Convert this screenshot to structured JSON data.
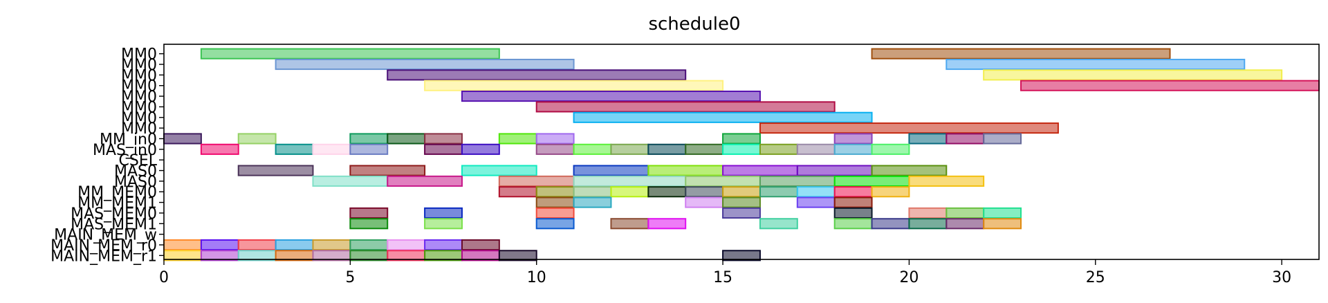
{
  "chart_data": {
    "type": "gantt",
    "title": "schedule0",
    "xlim": [
      0,
      31
    ],
    "x_ticks": [
      0,
      5,
      10,
      15,
      20,
      25,
      30
    ],
    "grid": false,
    "rows": [
      "MM0",
      "MM0",
      "MM0",
      "MM0",
      "MM0",
      "MM0",
      "MM0",
      "MM0",
      "MM_in0",
      "MAS_in0",
      "CSEL",
      "MAS0",
      "MAS0",
      "MM_MEM0",
      "MM_MEM1",
      "MAS_MEM0",
      "MAS_MEM1",
      "MAIN_MEM_w",
      "MAIN_MEM_r0",
      "MAIN_MEM_r1"
    ],
    "bars": [
      {
        "row": 0,
        "start": 1,
        "end": 9,
        "color": "#3cc453"
      },
      {
        "row": 0,
        "start": 19,
        "end": 27,
        "color": "#a0500f"
      },
      {
        "row": 1,
        "start": 3,
        "end": 11,
        "color": "#6b96d2"
      },
      {
        "row": 1,
        "start": 21,
        "end": 29,
        "color": "#4ea8f0"
      },
      {
        "row": 2,
        "start": 6,
        "end": 14,
        "color": "#4a0f78"
      },
      {
        "row": 2,
        "start": 22,
        "end": 30,
        "color": "#f2ee4e"
      },
      {
        "row": 3,
        "start": 7,
        "end": 15,
        "color": "#fff180"
      },
      {
        "row": 3,
        "start": 23,
        "end": 31,
        "color": "#d4145a"
      },
      {
        "row": 4,
        "start": 8,
        "end": 16,
        "color": "#5612b0"
      },
      {
        "row": 5,
        "start": 10,
        "end": 18,
        "color": "#b00c44"
      },
      {
        "row": 6,
        "start": 11,
        "end": 19,
        "color": "#07b0f0"
      },
      {
        "row": 7,
        "start": 16,
        "end": 24,
        "color": "#c42810"
      },
      {
        "row": 8,
        "start": 0,
        "end": 1,
        "color": "#3c1a5c"
      },
      {
        "row": 8,
        "start": 2,
        "end": 3,
        "color": "#95d165"
      },
      {
        "row": 8,
        "start": 5,
        "end": 6,
        "color": "#0e9a5c"
      },
      {
        "row": 8,
        "start": 6,
        "end": 7,
        "color": "#0c5a1a"
      },
      {
        "row": 8,
        "start": 7,
        "end": 8,
        "color": "#8a3044"
      },
      {
        "row": 8,
        "start": 9,
        "end": 10,
        "color": "#50e60a"
      },
      {
        "row": 8,
        "start": 10,
        "end": 11,
        "color": "#a068ee"
      },
      {
        "row": 8,
        "start": 15,
        "end": 16,
        "color": "#0ea53a"
      },
      {
        "row": 8,
        "start": 18,
        "end": 19,
        "color": "#8c40ba"
      },
      {
        "row": 8,
        "start": 20,
        "end": 21,
        "color": "#0a6a80"
      },
      {
        "row": 8,
        "start": 21,
        "end": 22,
        "color": "#920e66"
      },
      {
        "row": 8,
        "start": 22,
        "end": 23,
        "color": "#666a9a"
      },
      {
        "row": 9,
        "start": 1,
        "end": 2,
        "color": "#f00a6e"
      },
      {
        "row": 9,
        "start": 3,
        "end": 4,
        "color": "#06908a"
      },
      {
        "row": 9,
        "start": 4,
        "end": 5,
        "color": "#ffd4ea"
      },
      {
        "row": 9,
        "start": 5,
        "end": 6,
        "color": "#6a7cc2"
      },
      {
        "row": 9,
        "start": 7,
        "end": 8,
        "color": "#66064e"
      },
      {
        "row": 9,
        "start": 8,
        "end": 9,
        "color": "#3c0ec2"
      },
      {
        "row": 9,
        "start": 10,
        "end": 11,
        "color": "#964a88"
      },
      {
        "row": 9,
        "start": 11,
        "end": 12,
        "color": "#5cf03a"
      },
      {
        "row": 9,
        "start": 12,
        "end": 13,
        "color": "#7aa84e"
      },
      {
        "row": 9,
        "start": 13,
        "end": 14,
        "color": "#0a4a58"
      },
      {
        "row": 9,
        "start": 14,
        "end": 15,
        "color": "#326a22"
      },
      {
        "row": 9,
        "start": 15,
        "end": 16,
        "color": "#0af0b0"
      },
      {
        "row": 9,
        "start": 16,
        "end": 17,
        "color": "#7aa020"
      },
      {
        "row": 9,
        "start": 17,
        "end": 18,
        "color": "#9a8aa8"
      },
      {
        "row": 9,
        "start": 18,
        "end": 19,
        "color": "#4aaad0"
      },
      {
        "row": 9,
        "start": 19,
        "end": 20,
        "color": "#4cf068"
      },
      {
        "row": 11,
        "start": 2,
        "end": 4,
        "color": "#4a3258"
      },
      {
        "row": 11,
        "start": 5,
        "end": 7,
        "color": "#8e1a1a"
      },
      {
        "row": 11,
        "start": 8,
        "end": 10,
        "color": "#10eac0"
      },
      {
        "row": 11,
        "start": 11,
        "end": 13,
        "color": "#0a38c0"
      },
      {
        "row": 11,
        "start": 13,
        "end": 15,
        "color": "#80e00a"
      },
      {
        "row": 11,
        "start": 15,
        "end": 17,
        "color": "#860ed2"
      },
      {
        "row": 11,
        "start": 17,
        "end": 19,
        "color": "#6e0ec0"
      },
      {
        "row": 11,
        "start": 19,
        "end": 21,
        "color": "#5a900e"
      },
      {
        "row": 12,
        "start": 4,
        "end": 6,
        "color": "#80e0c8"
      },
      {
        "row": 12,
        "start": 6,
        "end": 8,
        "color": "#c8188a"
      },
      {
        "row": 12,
        "start": 9,
        "end": 11,
        "color": "#d06a5c"
      },
      {
        "row": 12,
        "start": 11,
        "end": 14,
        "color": "#90d8c0"
      },
      {
        "row": 12,
        "start": 14,
        "end": 16,
        "color": "#90c870"
      },
      {
        "row": 12,
        "start": 16,
        "end": 18,
        "color": "#5aa060"
      },
      {
        "row": 12,
        "start": 18,
        "end": 20,
        "color": "#0ae00a"
      },
      {
        "row": 12,
        "start": 20,
        "end": 22,
        "color": "#f4c010"
      },
      {
        "row": 13,
        "start": 9,
        "end": 10,
        "color": "#b0102a"
      },
      {
        "row": 13,
        "start": 10,
        "end": 11,
        "color": "#8c8c10"
      },
      {
        "row": 13,
        "start": 11,
        "end": 12,
        "color": "#8ac080"
      },
      {
        "row": 13,
        "start": 12,
        "end": 13,
        "color": "#b6f010"
      },
      {
        "row": 13,
        "start": 13,
        "end": 14,
        "color": "#0a2a0a"
      },
      {
        "row": 13,
        "start": 14,
        "end": 15,
        "color": "#3c4a5a"
      },
      {
        "row": 13,
        "start": 15,
        "end": 16,
        "color": "#c8a010"
      },
      {
        "row": 13,
        "start": 16,
        "end": 17,
        "color": "#30a070"
      },
      {
        "row": 13,
        "start": 17,
        "end": 18,
        "color": "#3cc6f0"
      },
      {
        "row": 13,
        "start": 18,
        "end": 19,
        "color": "#f01050"
      },
      {
        "row": 13,
        "start": 19,
        "end": 20,
        "color": "#f0b010"
      },
      {
        "row": 14,
        "start": 10,
        "end": 11,
        "color": "#8a4a10"
      },
      {
        "row": 14,
        "start": 11,
        "end": 12,
        "color": "#2aa8c0"
      },
      {
        "row": 14,
        "start": 14,
        "end": 15,
        "color": "#d080f0"
      },
      {
        "row": 14,
        "start": 15,
        "end": 16,
        "color": "#5a8a20"
      },
      {
        "row": 14,
        "start": 17,
        "end": 18,
        "color": "#6a40f0"
      },
      {
        "row": 14,
        "start": 18,
        "end": 19,
        "color": "#8a1a0a"
      },
      {
        "row": 15,
        "start": 5,
        "end": 6,
        "color": "#7a0a2a"
      },
      {
        "row": 15,
        "start": 7,
        "end": 8,
        "color": "#0a2ac0"
      },
      {
        "row": 15,
        "start": 10,
        "end": 11,
        "color": "#f04a3a"
      },
      {
        "row": 15,
        "start": 15,
        "end": 16,
        "color": "#4a3a9a"
      },
      {
        "row": 15,
        "start": 18,
        "end": 19,
        "color": "#0a1a2a"
      },
      {
        "row": 15,
        "start": 20,
        "end": 21,
        "color": "#e0786a"
      },
      {
        "row": 15,
        "start": 21,
        "end": 22,
        "color": "#6ac040"
      },
      {
        "row": 15,
        "start": 22,
        "end": 23,
        "color": "#20e090"
      },
      {
        "row": 16,
        "start": 5,
        "end": 6,
        "color": "#0a8a0a"
      },
      {
        "row": 16,
        "start": 7,
        "end": 8,
        "color": "#7ae04a"
      },
      {
        "row": 16,
        "start": 10,
        "end": 11,
        "color": "#0a5ad0"
      },
      {
        "row": 16,
        "start": 12,
        "end": 13,
        "color": "#8a4a30"
      },
      {
        "row": 16,
        "start": 13,
        "end": 14,
        "color": "#e010f0"
      },
      {
        "row": 16,
        "start": 16,
        "end": 17,
        "color": "#40d0a0"
      },
      {
        "row": 16,
        "start": 18,
        "end": 19,
        "color": "#5ad04a"
      },
      {
        "row": 16,
        "start": 19,
        "end": 20,
        "color": "#3a3a8a"
      },
      {
        "row": 16,
        "start": 20,
        "end": 21,
        "color": "#0a6a4a"
      },
      {
        "row": 16,
        "start": 21,
        "end": 22,
        "color": "#6a2a6a"
      },
      {
        "row": 16,
        "start": 22,
        "end": 23,
        "color": "#e08a10"
      },
      {
        "row": 18,
        "start": 0,
        "end": 1,
        "color": "#ff8a2a"
      },
      {
        "row": 18,
        "start": 1,
        "end": 2,
        "color": "#5a10f0"
      },
      {
        "row": 18,
        "start": 2,
        "end": 3,
        "color": "#f0404a"
      },
      {
        "row": 18,
        "start": 3,
        "end": 4,
        "color": "#2aa0e0"
      },
      {
        "row": 18,
        "start": 4,
        "end": 5,
        "color": "#c89a2a"
      },
      {
        "row": 18,
        "start": 5,
        "end": 6,
        "color": "#30a060"
      },
      {
        "row": 18,
        "start": 6,
        "end": 7,
        "color": "#e890f0"
      },
      {
        "row": 18,
        "start": 7,
        "end": 8,
        "color": "#6a2af0"
      },
      {
        "row": 18,
        "start": 8,
        "end": 9,
        "color": "#6a0a2a"
      },
      {
        "row": 19,
        "start": 0,
        "end": 1,
        "color": "#ffd02a"
      },
      {
        "row": 19,
        "start": 1,
        "end": 2,
        "color": "#b040d0"
      },
      {
        "row": 19,
        "start": 2,
        "end": 3,
        "color": "#70d0c8"
      },
      {
        "row": 19,
        "start": 3,
        "end": 4,
        "color": "#d86a10"
      },
      {
        "row": 19,
        "start": 4,
        "end": 5,
        "color": "#b06aa0"
      },
      {
        "row": 19,
        "start": 5,
        "end": 6,
        "color": "#2a8a2a"
      },
      {
        "row": 19,
        "start": 6,
        "end": 7,
        "color": "#f0305a"
      },
      {
        "row": 19,
        "start": 7,
        "end": 8,
        "color": "#4a9a0a"
      },
      {
        "row": 19,
        "start": 8,
        "end": 9,
        "color": "#b00a8a"
      },
      {
        "row": 9.0,
        "start": 0,
        "end": 0,
        "color": "#000000"
      },
      {
        "row": 19,
        "start": 9,
        "end": 10,
        "color": "#1a0a2a"
      },
      {
        "row": 19,
        "start": 15,
        "end": 16,
        "color": "#0a0a2a"
      }
    ]
  }
}
